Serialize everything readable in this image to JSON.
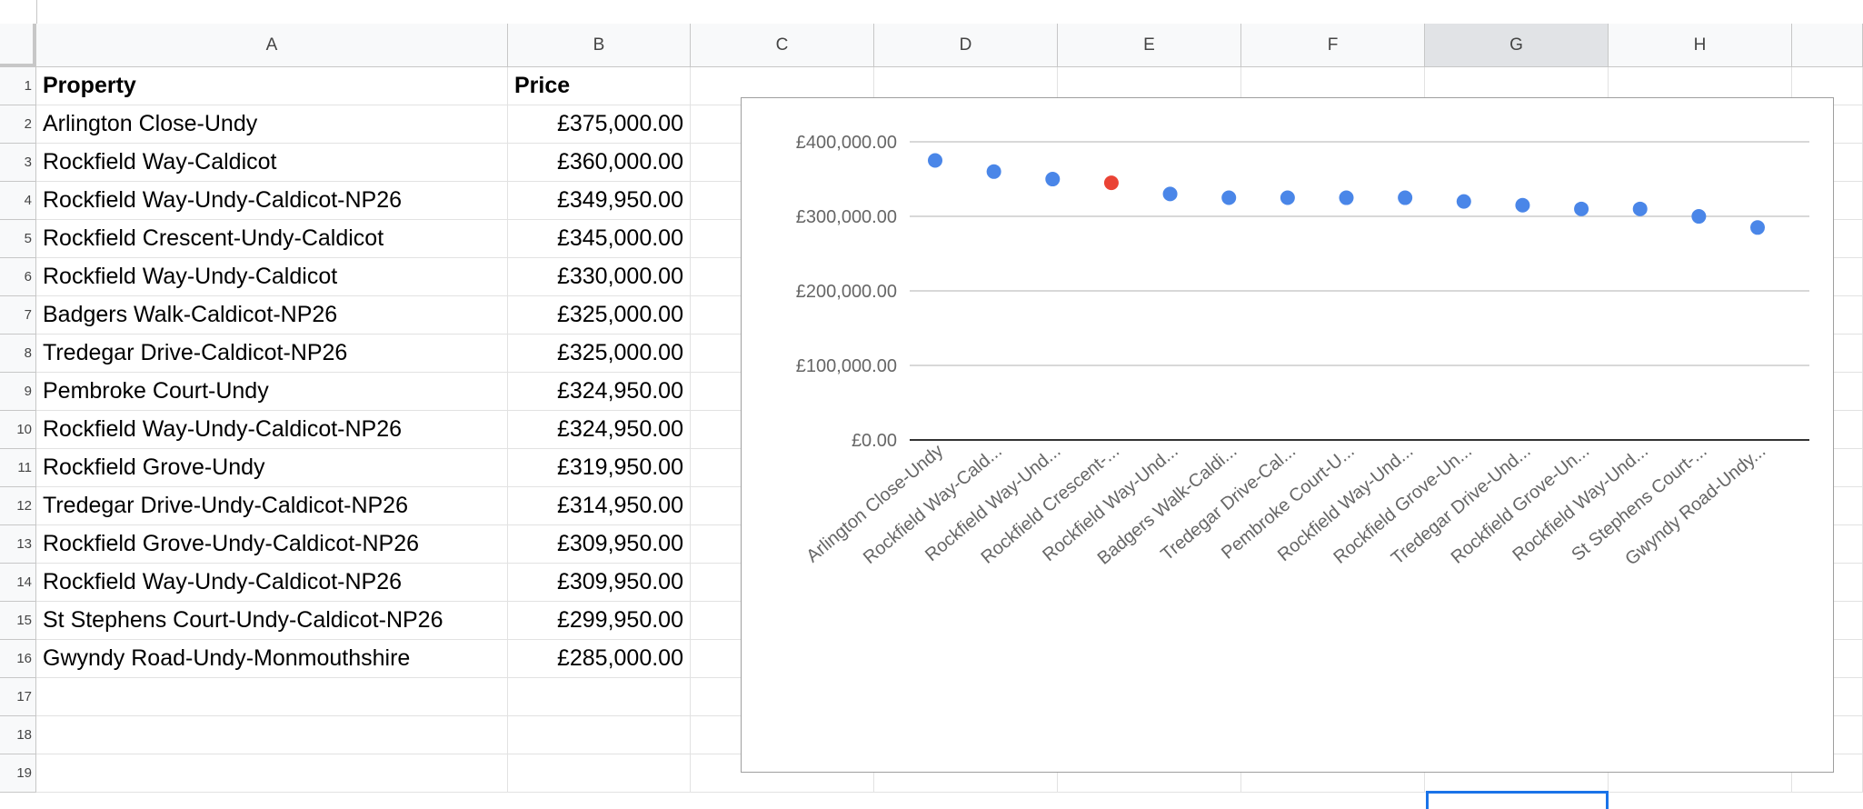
{
  "spreadsheet": {
    "columns": [
      "A",
      "B",
      "C",
      "D",
      "E",
      "F",
      "G",
      "H",
      ""
    ],
    "selected_column": "G",
    "row_numbers": [
      "1",
      "2",
      "3",
      "4",
      "5",
      "6",
      "7",
      "8",
      "9",
      "10",
      "11",
      "12",
      "13",
      "14",
      "15",
      "16",
      "17",
      "18",
      "19"
    ],
    "headers": {
      "property": "Property",
      "price": "Price"
    },
    "rows": [
      {
        "property": "Arlington Close-Undy",
        "price": "£375,000.00"
      },
      {
        "property": "Rockfield Way-Caldicot",
        "price": "£360,000.00"
      },
      {
        "property": "Rockfield Way-Undy-Caldicot-NP26",
        "price": "£349,950.00"
      },
      {
        "property": "Rockfield Crescent-Undy-Caldicot",
        "price": "£345,000.00"
      },
      {
        "property": "Rockfield Way-Undy-Caldicot",
        "price": "£330,000.00"
      },
      {
        "property": "Badgers Walk-Caldicot-NP26",
        "price": "£325,000.00"
      },
      {
        "property": "Tredegar Drive-Caldicot-NP26",
        "price": "£325,000.00"
      },
      {
        "property": "Pembroke Court-Undy",
        "price": "£324,950.00"
      },
      {
        "property": "Rockfield Way-Undy-Caldicot-NP26",
        "price": "£324,950.00"
      },
      {
        "property": "Rockfield Grove-Undy",
        "price": "£319,950.00"
      },
      {
        "property": "Tredegar Drive-Undy-Caldicot-NP26",
        "price": "£314,950.00"
      },
      {
        "property": "Rockfield Grove-Undy-Caldicot-NP26",
        "price": "£309,950.00"
      },
      {
        "property": "Rockfield Way-Undy-Caldicot-NP26",
        "price": "£309,950.00"
      },
      {
        "property": "St Stephens Court-Undy-Caldicot-NP26",
        "price": "£299,950.00"
      },
      {
        "property": "Gwyndy Road-Undy-Monmouthshire",
        "price": "£285,000.00"
      }
    ]
  },
  "chart_data": {
    "type": "scatter",
    "title": "",
    "xlabel": "",
    "ylabel": "",
    "ylim": [
      0,
      400000
    ],
    "yticks": [
      "£0.00",
      "£100,000.00",
      "£200,000.00",
      "£300,000.00",
      "£400,000.00"
    ],
    "categories": [
      "Arlington Close-Undy",
      "Rockfield Way-Cald...",
      "Rockfield Way-Und...",
      "Rockfield Crescent-...",
      "Rockfield Way-Und...",
      "Badgers Walk-Caldi...",
      "Tredegar Drive-Cal...",
      "Pembroke Court-U...",
      "Rockfield Way-Und...",
      "Rockfield Grove-Un...",
      "Tredegar Drive-Und...",
      "Rockfield Grove-Un...",
      "Rockfield Way-Und...",
      "St Stephens Court-...",
      "Gwyndy Road-Undy..."
    ],
    "values": [
      375000,
      360000,
      349950,
      345000,
      330000,
      325000,
      325000,
      324950,
      324950,
      319950,
      314950,
      309950,
      309950,
      299950,
      285000
    ],
    "highlight_index": 3,
    "grid": true,
    "colors": {
      "point": "#4a86e8",
      "highlight": "#ea4335",
      "grid": "#cccccc",
      "baseline": "#333333",
      "labels": "#666666"
    }
  }
}
